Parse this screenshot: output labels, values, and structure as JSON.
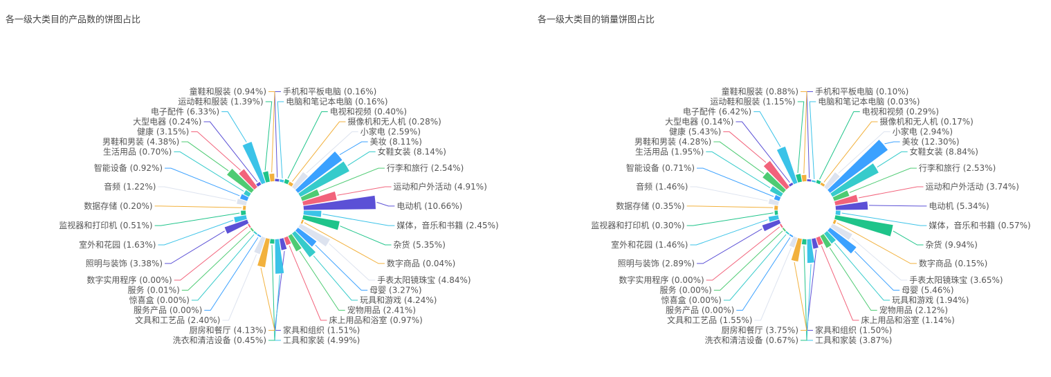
{
  "chart_data": [
    {
      "type": "pie",
      "rose": true,
      "title": "各一级大类目的产品数的饼图占比",
      "categories": [
        "手机和平板电脑",
        "电脑和笔记本电脑",
        "电视和视频",
        "摄像机和无人机",
        "小家电",
        "美妆",
        "女鞋女装",
        "行李和旅行",
        "运动和户外活动",
        "电动机",
        "媒体，音乐和书籍",
        "杂货",
        "数字商品",
        "手表太阳镜珠宝",
        "母婴",
        "玩具和游戏",
        "宠物用品",
        "床上用品和浴室",
        "家具和组织",
        "工具和家装",
        "洗衣和清洁设备",
        "厨房和餐厅",
        "文具和工艺品",
        "服务产品",
        "惊喜盒",
        "服务",
        "数字实用程序",
        "照明与装饰",
        "室外和花园",
        "监视器和打印机",
        "数据存储",
        "音频",
        "智能设备",
        "生活用品",
        "男鞋和男装",
        "健康",
        "大型电器",
        "电子配件",
        "运动鞋和服装",
        "童鞋和服装"
      ],
      "values": [
        0.16,
        0.16,
        0.4,
        0.28,
        2.59,
        8.11,
        8.14,
        2.54,
        4.91,
        10.66,
        2.45,
        5.35,
        0.04,
        4.84,
        3.27,
        4.24,
        2.41,
        0.97,
        1.51,
        4.99,
        0.45,
        4.13,
        2.4,
        0.0,
        0.0,
        0.01,
        0.0,
        3.38,
        1.63,
        0.51,
        0.2,
        1.22,
        0.92,
        0.7,
        4.38,
        3.15,
        0.24,
        6.33,
        1.39,
        0.94
      ],
      "value_labels": [
        "(0.16%)",
        "(0.16%)",
        "(0.40%)",
        "(0.28%)",
        "(2.59%)",
        "(8.11%)",
        "(8.14%)",
        "(2.54%)",
        "(4.91%)",
        "(10.66%)",
        "(2.45%)",
        "(5.35%)",
        "(0.04%)",
        "(4.84%)",
        "(3.27%)",
        "(4.24%)",
        "(2.41%)",
        "(0.97%)",
        "(1.51%)",
        "(4.99%)",
        "(0.45%)",
        "(4.13%)",
        "(2.40%)",
        "(0.00%)",
        "(0.00%)",
        "(0.01%)",
        "(0.00%)",
        "(3.38%)",
        "(1.63%)",
        "(0.51%)",
        "(0.20%)",
        "(1.22%)",
        "(0.92%)",
        "(0.70%)",
        "(4.38%)",
        "(3.15%)",
        "(0.24%)",
        "(6.33%)",
        "(1.39%)",
        "(0.94%)"
      ],
      "colors": [
        "#5b50d6",
        "#3bc3e8",
        "#1fc48a",
        "#f2b13d",
        "#dde3ef",
        "#3ba1ff",
        "#36cbcb",
        "#4ecb73",
        "#f2637b"
      ]
    },
    {
      "type": "pie",
      "rose": true,
      "title": "各一级大类目的销量饼图占比",
      "categories": [
        "手机和平板电脑",
        "电脑和笔记本电脑",
        "电视和视频",
        "摄像机和无人机",
        "小家电",
        "美妆",
        "女鞋女装",
        "行李和旅行",
        "运动和户外活动",
        "电动机",
        "媒体，音乐和书籍",
        "杂货",
        "数字商品",
        "手表太阳镜珠宝",
        "母婴",
        "玩具和游戏",
        "宠物用品",
        "床上用品和浴室",
        "家具和组织",
        "工具和家装",
        "洗衣和清洁设备",
        "厨房和餐厅",
        "文具和工艺品",
        "服务产品",
        "惊喜盒",
        "服务",
        "数字实用程序",
        "照明与装饰",
        "室外和花园",
        "监视器和打印机",
        "数据存储",
        "音频",
        "智能设备",
        "生活用品",
        "男鞋和男装",
        "健康",
        "大型电器",
        "电子配件",
        "运动鞋和服装",
        "童鞋和服装"
      ],
      "values": [
        0.1,
        0.03,
        0.29,
        0.17,
        2.94,
        12.3,
        8.84,
        2.53,
        3.74,
        5.34,
        0.57,
        9.94,
        0.15,
        3.65,
        5.46,
        1.94,
        2.12,
        1.14,
        1.5,
        3.87,
        0.67,
        3.75,
        1.55,
        0.0,
        0.0,
        0.0,
        0.0,
        2.89,
        1.46,
        0.3,
        0.35,
        1.46,
        0.71,
        1.95,
        4.28,
        5.43,
        0.14,
        6.42,
        1.15,
        0.88
      ],
      "value_labels": [
        "(0.10%)",
        "(0.03%)",
        "(0.29%)",
        "(0.17%)",
        "(2.94%)",
        "(12.30%)",
        "(8.84%)",
        "(2.53%)",
        "(3.74%)",
        "(5.34%)",
        "(0.57%)",
        "(9.94%)",
        "(0.15%)",
        "(3.65%)",
        "(5.46%)",
        "(1.94%)",
        "(2.12%)",
        "(1.14%)",
        "(1.50%)",
        "(3.87%)",
        "(0.67%)",
        "(3.75%)",
        "(1.55%)",
        "(0.00%)",
        "(0.00%)",
        "(0.00%)",
        "(0.00%)",
        "(2.89%)",
        "(1.46%)",
        "(0.30%)",
        "(0.35%)",
        "(1.46%)",
        "(0.71%)",
        "(1.95%)",
        "(4.28%)",
        "(5.43%)",
        "(0.14%)",
        "(6.42%)",
        "(1.15%)",
        "(0.88%)"
      ],
      "colors": [
        "#5b50d6",
        "#3bc3e8",
        "#1fc48a",
        "#f2b13d",
        "#dde3ef",
        "#3ba1ff",
        "#36cbcb",
        "#4ecb73",
        "#f2637b"
      ]
    }
  ]
}
